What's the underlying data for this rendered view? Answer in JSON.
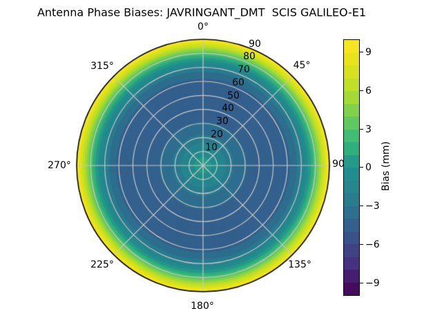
{
  "figure": {
    "background": "#ffffff",
    "title": "Antenna Phase Biases: JAVRINGANT_DMT  SCIS GALILEO-E1"
  },
  "chart_data": {
    "type": "heatmap",
    "projection": "polar",
    "title": "Antenna Phase Biases: JAVRINGANT_DMT  SCIS GALILEO-E1",
    "antenna": "JAVRINGANT_DMT",
    "dome": "SCIS",
    "signal": "GALILEO-E1",
    "colormap": "viridis",
    "azimuth_independent": true,
    "theta_zero_location": "top",
    "theta_labels": [
      "0°",
      "45°",
      "90",
      "135°",
      "180°",
      "225°",
      "270°",
      "315°"
    ],
    "r_labels": [
      "10",
      "20",
      "30",
      "40",
      "50",
      "60",
      "70",
      "80",
      "90"
    ],
    "r_max_deg": 90,
    "r_grid_step_deg": 10,
    "theta_grid_step_deg": 45,
    "grid_color": "#c8c8c8",
    "outline_color": "#000000",
    "profile": {
      "comment": "Bias (mm) as a function of zenith angle (deg); pattern is azimuth-independent (concentric rings)",
      "zenith_deg": [
        0,
        6,
        11,
        16,
        22,
        27,
        32,
        38,
        44,
        50,
        55,
        60,
        62,
        67,
        70.5,
        72.8,
        75,
        76.8,
        78.5,
        80,
        81.5,
        83,
        84.5,
        86,
        87.3,
        88.7,
        90
      ],
      "bias_mm": [
        0.9,
        0,
        -1,
        -2,
        -3,
        -3.6,
        -4.05,
        -4.45,
        -4.65,
        -4.7,
        -4.55,
        -4.2,
        -4,
        -3,
        -2,
        -1,
        0,
        1,
        2,
        3,
        4,
        5,
        6,
        7,
        8,
        9,
        10
      ]
    },
    "colorbar": {
      "label": "Bias (mm)",
      "range": [
        -10,
        10
      ],
      "n_bands": 20,
      "ticks": [
        9,
        6,
        3,
        0,
        -3,
        -6,
        -9
      ],
      "tick_labels": [
        "9",
        "6",
        "3",
        "0",
        "−3",
        "−6",
        "−9"
      ]
    },
    "palette": [
      "#450b5d",
      "#471e6f",
      "#463080",
      "#414185",
      "#3b518a",
      "#34608d",
      "#2e6e8e",
      "#297c8e",
      "#25868e",
      "#228d8d",
      "#269a88",
      "#30ae7e",
      "#43bd71",
      "#60c861",
      "#80d24d",
      "#a3da36",
      "#c0df26",
      "#d5e21d",
      "#e7e41b",
      "#f6e622"
    ]
  }
}
